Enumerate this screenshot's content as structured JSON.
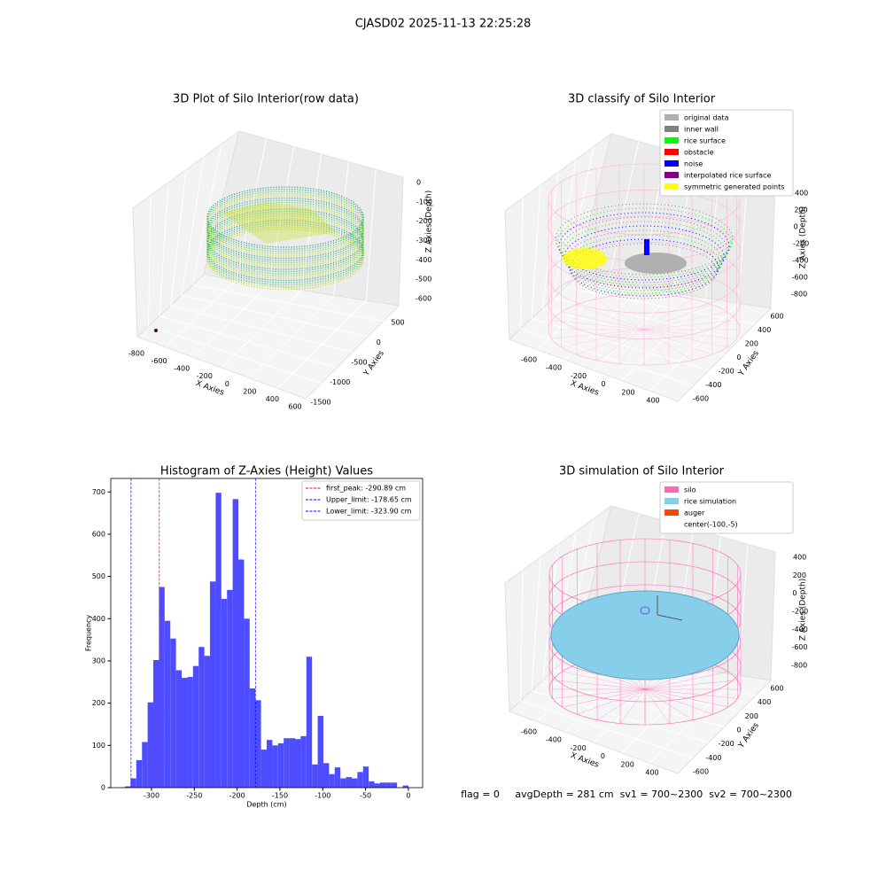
{
  "title": "CJASD02 2025-11-13 22:25:28",
  "footer": "flag = 0     avgDepth = 281 cm  sv1 = 700~2300  sv2 = 700~2300",
  "chart_data": [
    {
      "type": "scatter3d",
      "title": "3D Plot of Silo Interior(row data)",
      "xlabel": "X Axies",
      "ylabel": "Y Axies",
      "zlabel": "Z Axies (Depth)",
      "xticks": [
        -800,
        -600,
        -400,
        -200,
        0,
        200,
        400,
        600
      ],
      "yticks": [
        500,
        0,
        -500,
        -1000,
        -1500
      ],
      "zticks": [
        0,
        -100,
        -200,
        -300,
        -400,
        -500,
        -600
      ]
    },
    {
      "type": "scatter3d",
      "title": "3D classify of Silo Interior",
      "xlabel": "X Axies",
      "ylabel": "Y Axies",
      "zlabel": "Z Axies (Depth)",
      "xticks": [
        -600,
        -400,
        -200,
        0,
        200,
        400
      ],
      "yticks": [
        600,
        400,
        200,
        0,
        -200,
        -400,
        -600
      ],
      "zticks": [
        400,
        200,
        0,
        -200,
        -400,
        -600,
        -800
      ],
      "legend": [
        {
          "name": "original data",
          "color": "#b0b0b0"
        },
        {
          "name": "inner wall",
          "color": "#808080"
        },
        {
          "name": "rice surface",
          "color": "#00ff00"
        },
        {
          "name": "obstacle",
          "color": "#ff0000"
        },
        {
          "name": "noise",
          "color": "#0000ff"
        },
        {
          "name": "interpolated rice surface",
          "color": "#800080"
        },
        {
          "name": "symmetric generated points",
          "color": "#ffff00"
        }
      ]
    },
    {
      "type": "histogram",
      "title": "Histogram of Z-Axies (Height) Values",
      "xlabel": "Depth (cm)",
      "ylabel": "Frequency",
      "color": "#4d4dff",
      "bins": [
        -331,
        -324.38,
        -317.76,
        -311.14,
        -304.52,
        -297.9,
        -291.28,
        -284.66,
        -278.04,
        -271.42,
        -264.8,
        -258.18,
        -251.56,
        -244.94,
        -238.32,
        -231.7,
        -225.08,
        -218.46,
        -211.84,
        -205.22,
        -198.6,
        -191.98,
        -185.36,
        -178.74,
        -172.12,
        -165.5,
        -158.88,
        -152.26,
        -145.64,
        -139.02,
        -132.4,
        -125.78,
        -119.16,
        -112.54,
        -105.92,
        -99.3,
        -92.68,
        -86.06,
        -79.44,
        -72.82,
        -66.2,
        -59.58,
        -52.96,
        -46.34,
        -39.72,
        -33.1,
        -26.48,
        -19.86,
        -13.24,
        -6.62,
        0
      ],
      "values": [
        3,
        22,
        65,
        108,
        202,
        302,
        475,
        395,
        353,
        278,
        260,
        262,
        288,
        333,
        312,
        488,
        698,
        447,
        468,
        683,
        540,
        400,
        235,
        207,
        90,
        113,
        100,
        105,
        117,
        117,
        115,
        122,
        310,
        55,
        170,
        58,
        32,
        48,
        22,
        25,
        22,
        37,
        50,
        15,
        10,
        12,
        12,
        12,
        0,
        5
      ],
      "xlim": [
        -347.6,
        16.6
      ],
      "ylim": [
        0,
        732
      ],
      "xticks": [
        -300,
        -250,
        -200,
        -150,
        -100,
        -50,
        0
      ],
      "yticks": [
        0,
        100,
        200,
        300,
        400,
        500,
        600,
        700
      ],
      "lines": [
        {
          "name": "first_peak: -290.89 cm",
          "value": -290.89,
          "color": "#ff0000"
        },
        {
          "name": "Upper_limit: -178.65 cm",
          "value": -178.65,
          "color": "#0000ff"
        },
        {
          "name": "Lower_limit: -323.90 cm",
          "value": -323.9,
          "color": "#0000ff"
        }
      ]
    },
    {
      "type": "scatter3d",
      "title": "3D simulation of Silo Interior",
      "xlabel": "X Axies",
      "ylabel": "Y Axies",
      "zlabel": "Z Axies (Depth)",
      "xticks": [
        -600,
        -400,
        -200,
        0,
        200,
        400
      ],
      "yticks": [
        600,
        400,
        200,
        0,
        -200,
        -400,
        -600
      ],
      "zticks": [
        400,
        200,
        0,
        -200,
        -400,
        -600,
        -800
      ],
      "legend": [
        {
          "name": "silo",
          "color": "#ff69b4"
        },
        {
          "name": "rice simulation",
          "color": "#87ceeb"
        },
        {
          "name": "auger",
          "color": "#ff4500"
        },
        {
          "name": "center(-100,-5)",
          "color": "none"
        }
      ]
    }
  ]
}
